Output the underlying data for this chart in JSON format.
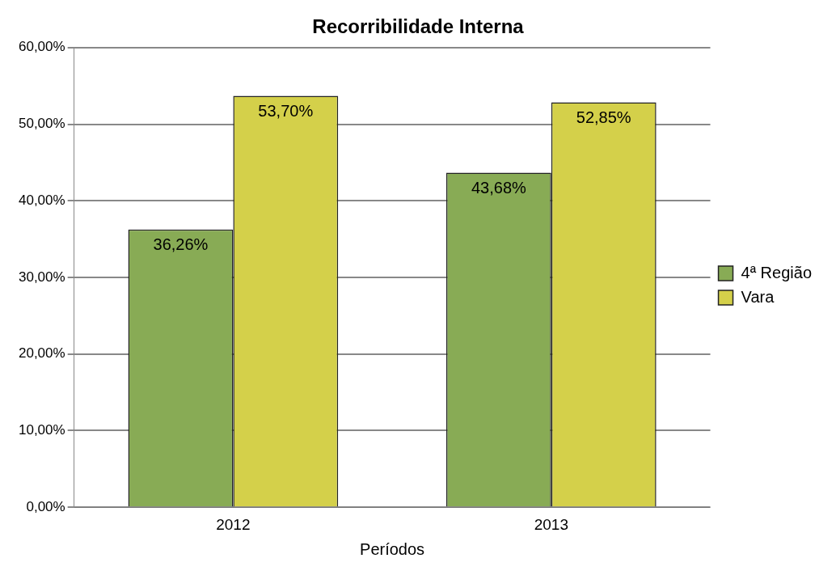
{
  "chart_data": {
    "type": "bar",
    "title": "Recorribilidade Interna",
    "xlabel": "Períodos",
    "categories": [
      "2012",
      "2013"
    ],
    "series": [
      {
        "name": "4ª Região",
        "color": "#88ab55",
        "values": [
          36.26,
          43.68
        ],
        "value_labels": [
          "36,26%",
          "43,68%"
        ]
      },
      {
        "name": "Vara",
        "color": "#d4d04a",
        "values": [
          53.7,
          52.85
        ],
        "value_labels": [
          "53,70%",
          "52,85%"
        ]
      }
    ],
    "ylim": [
      0,
      60
    ],
    "yticks": [
      {
        "value": 0,
        "label": "0,00%"
      },
      {
        "value": 10,
        "label": "10,00%"
      },
      {
        "value": 20,
        "label": "20,00%"
      },
      {
        "value": 30,
        "label": "30,00%"
      },
      {
        "value": 40,
        "label": "40,00%"
      },
      {
        "value": 50,
        "label": "50,00%"
      },
      {
        "value": 60,
        "label": "60,00%"
      }
    ],
    "grid": "y",
    "legend": "right"
  }
}
